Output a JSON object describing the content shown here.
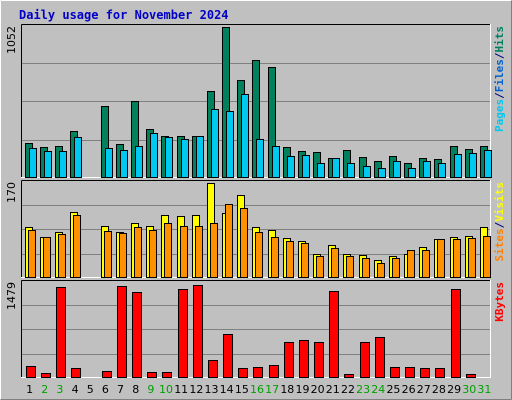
{
  "chart_data": {
    "type": "bar",
    "title": "Daily usage for November 2024",
    "categories": [
      "1",
      "2",
      "3",
      "4",
      "5",
      "6",
      "7",
      "8",
      "9",
      "10",
      "11",
      "12",
      "13",
      "14",
      "15",
      "16",
      "17",
      "18",
      "19",
      "20",
      "21",
      "22",
      "23",
      "24",
      "25",
      "26",
      "27",
      "28",
      "29",
      "30",
      "31"
    ],
    "weekend_days": [
      "2",
      "3",
      "9",
      "10",
      "16",
      "17",
      "23",
      "24",
      "30",
      "31"
    ],
    "panels": [
      {
        "id": "hits-files-pages",
        "max_label": "1052",
        "ylim": [
          0,
          1052
        ],
        "right_label": [
          {
            "text": "Pages",
            "color": "#00c8f0"
          },
          {
            "text": "/",
            "color": "#000080"
          },
          {
            "text": "Files",
            "color": "#0060d0"
          },
          {
            "text": "/",
            "color": "#000080"
          },
          {
            "text": "Hits",
            "color": "#008060"
          }
        ],
        "series": [
          {
            "name": "Hits",
            "color": "#00805c",
            "values": [
              240,
              210,
              215,
              320,
              null,
              500,
              230,
              530,
              340,
              290,
              290,
              285,
              600,
              1052,
              680,
              820,
              770,
              210,
              185,
              175,
              130,
              190,
              140,
              110,
              145,
              95,
              130,
              125,
              215,
              195,
              215
            ]
          },
          {
            "name": "Files",
            "color": "#00a0b0",
            "values": [
              null,
              null,
              null,
              null,
              null,
              null,
              null,
              null,
              null,
              null,
              null,
              null,
              null,
              null,
              null,
              null,
              null,
              null,
              null,
              null,
              null,
              null,
              null,
              null,
              null,
              null,
              null,
              null,
              null,
              null,
              null
            ]
          },
          {
            "name": "Pages",
            "color": "#00c8f0",
            "values": [
              200,
              180,
              185,
              280,
              null,
              200,
              190,
              215,
              310,
              280,
              270,
              290,
              480,
              460,
              580,
              270,
              215,
              150,
              155,
              95,
              130,
              95,
              80,
              60,
              110,
              60,
              110,
              100,
              160,
              165,
              190
            ]
          }
        ]
      },
      {
        "id": "visits-sites",
        "max_label": "170",
        "ylim": [
          0,
          170
        ],
        "right_label": [
          {
            "text": "Sites",
            "color": "#ff8000"
          },
          {
            "text": "/",
            "color": "#000080"
          },
          {
            "text": "Visits",
            "color": "#ffff00"
          }
        ],
        "series": [
          {
            "name": "Visits",
            "color": "#ffff00",
            "values": [
              90,
              72,
              82,
              118,
              null,
              92,
              82,
              98,
              92,
              112,
              110,
              112,
              170,
              115,
              148,
              90,
              85,
              70,
              65,
              42,
              58,
              42,
              40,
              30,
              38,
              42,
              55,
              68,
              72,
              75,
              90
            ]
          },
          {
            "name": "Sites",
            "color": "#ff9000",
            "values": [
              85,
              72,
              78,
              113,
              null,
              83,
              80,
              90,
              85,
              98,
              92,
              92,
              98,
              132,
              125,
              82,
              72,
              65,
              62,
              38,
              52,
              38,
              35,
              25,
              34,
              48,
              48,
              68,
              68,
              70,
              75
            ]
          }
        ]
      },
      {
        "id": "kbytes",
        "max_label": "1479",
        "ylim": [
          0,
          1479
        ],
        "right_label": [
          {
            "text": "KBytes",
            "color": "#ff0000"
          }
        ],
        "series": [
          {
            "name": "KBytes",
            "color": "#ff0000",
            "values": [
              170,
              70,
              1420,
              140,
              null,
              100,
              1430,
              1330,
              80,
              80,
              1380,
              1450,
              260,
              670,
              140,
              160,
              190,
              550,
              590,
              550,
              1360,
              50,
              550,
              630,
              150,
              150,
              140,
              140,
              1380,
              50,
              null
            ]
          }
        ]
      }
    ]
  }
}
